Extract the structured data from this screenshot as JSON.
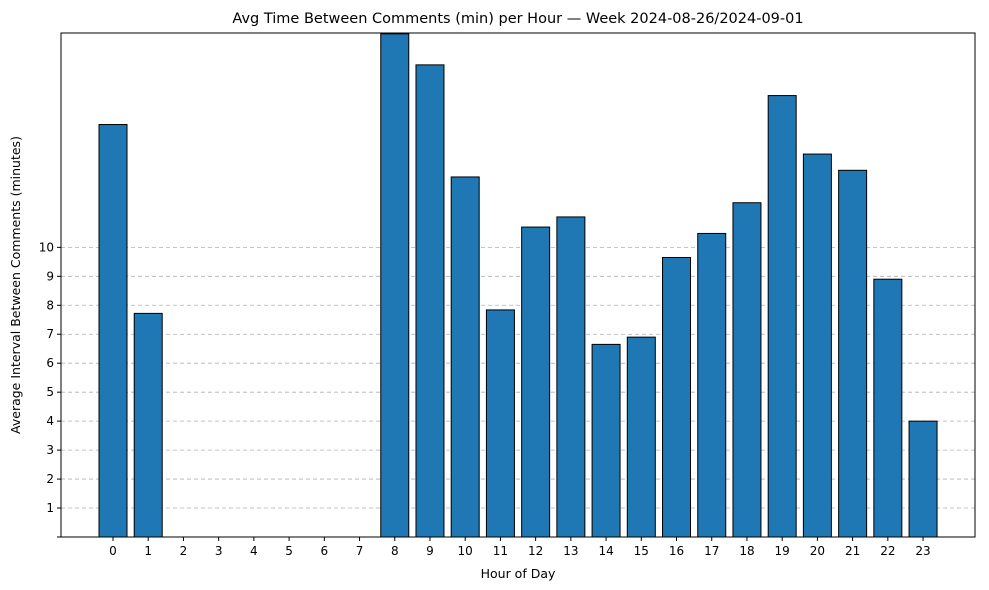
{
  "chart_data": {
    "type": "bar",
    "title": "Avg Time Between Comments (min) per Hour — Week 2024-08-26/2024-09-01",
    "xlabel": "Hour of Day",
    "ylabel": "Average Interval Between Comments (minutes)",
    "categories": [
      "0",
      "1",
      "2",
      "3",
      "4",
      "5",
      "6",
      "7",
      "8",
      "9",
      "10",
      "11",
      "12",
      "13",
      "14",
      "15",
      "16",
      "17",
      "18",
      "19",
      "20",
      "21",
      "22",
      "23"
    ],
    "values": [
      14.24,
      7.72,
      0,
      0,
      0,
      0,
      0,
      0,
      17.37,
      16.3,
      12.43,
      7.84,
      10.7,
      11.05,
      6.65,
      6.9,
      9.65,
      10.48,
      11.54,
      15.24,
      13.22,
      12.66,
      8.9,
      4.0
    ],
    "ylim": [
      0,
      17.4
    ],
    "yticks": [
      1,
      2,
      3,
      4,
      5,
      6,
      7,
      8,
      9,
      10
    ],
    "grid": "y-dashed",
    "bar_color": "#1f77b4",
    "edge_color": "#000000"
  }
}
